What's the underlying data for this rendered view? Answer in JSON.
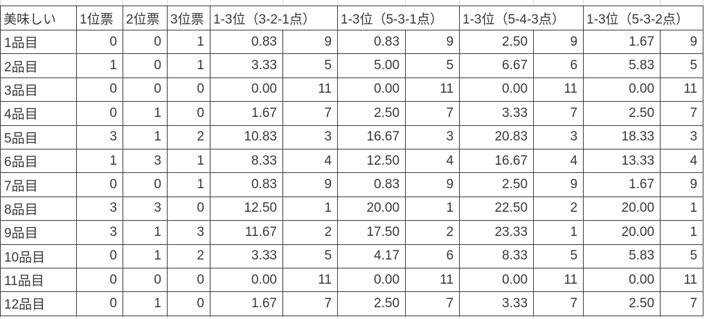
{
  "colors": {
    "highlight_gray": "#A6A6A6",
    "highlight_orange": "#FFC000",
    "highlight_blue": "#5B9BD5",
    "highlight_green": "#A9D18E"
  },
  "table": {
    "headers": [
      {
        "label": "美味しい",
        "span": 1
      },
      {
        "label": "1位票",
        "span": 1
      },
      {
        "label": "2位票",
        "span": 1
      },
      {
        "label": "3位票",
        "span": 1
      },
      {
        "label": "1-3位（3-2-1点）",
        "span": 2
      },
      {
        "label": "1-3位（5-3-1点）",
        "span": 2
      },
      {
        "label": "1-3位（5-4-3点）",
        "span": 2
      },
      {
        "label": "1-3位（5-3-2点）",
        "span": 2
      }
    ],
    "rows": [
      {
        "item": "1品目",
        "cells": [
          {
            "v": "0",
            "fill": "gray"
          },
          {
            "v": "0",
            "fill": "gray"
          },
          {
            "v": "1",
            "fill": ""
          },
          {
            "v": "0.83",
            "fill": ""
          },
          {
            "v": "9",
            "fill": ""
          },
          {
            "v": "0.83",
            "fill": ""
          },
          {
            "v": "9",
            "fill": ""
          },
          {
            "v": "2.50",
            "fill": ""
          },
          {
            "v": "9",
            "fill": ""
          },
          {
            "v": "1.67",
            "fill": ""
          },
          {
            "v": "9",
            "fill": ""
          }
        ]
      },
      {
        "item": "2品目",
        "cells": [
          {
            "v": "1",
            "fill": ""
          },
          {
            "v": "0",
            "fill": "gray"
          },
          {
            "v": "1",
            "fill": ""
          },
          {
            "v": "3.33",
            "fill": ""
          },
          {
            "v": "5",
            "fill": ""
          },
          {
            "v": "5.00",
            "fill": ""
          },
          {
            "v": "5",
            "fill": ""
          },
          {
            "v": "6.67",
            "fill": ""
          },
          {
            "v": "6",
            "fill": ""
          },
          {
            "v": "5.83",
            "fill": ""
          },
          {
            "v": "5",
            "fill": ""
          }
        ]
      },
      {
        "item": "3品目",
        "cells": [
          {
            "v": "0",
            "fill": "gray"
          },
          {
            "v": "0",
            "fill": "gray"
          },
          {
            "v": "0",
            "fill": "gray"
          },
          {
            "v": "0.00",
            "fill": "gray"
          },
          {
            "v": "11",
            "fill": "gray"
          },
          {
            "v": "0.00",
            "fill": "gray"
          },
          {
            "v": "11",
            "fill": "gray"
          },
          {
            "v": "0.00",
            "fill": "gray"
          },
          {
            "v": "11",
            "fill": "gray"
          },
          {
            "v": "0.00",
            "fill": "gray"
          },
          {
            "v": "11",
            "fill": "gray"
          }
        ]
      },
      {
        "item": "4品目",
        "cells": [
          {
            "v": "0",
            "fill": "gray"
          },
          {
            "v": "1",
            "fill": ""
          },
          {
            "v": "0",
            "fill": "gray"
          },
          {
            "v": "1.67",
            "fill": ""
          },
          {
            "v": "7",
            "fill": ""
          },
          {
            "v": "2.50",
            "fill": ""
          },
          {
            "v": "7",
            "fill": ""
          },
          {
            "v": "3.33",
            "fill": ""
          },
          {
            "v": "7",
            "fill": ""
          },
          {
            "v": "2.50",
            "fill": ""
          },
          {
            "v": "7",
            "fill": ""
          }
        ]
      },
      {
        "item": "5品目",
        "cells": [
          {
            "v": "3",
            "fill": "orange"
          },
          {
            "v": "1",
            "fill": ""
          },
          {
            "v": "2",
            "fill": "blue"
          },
          {
            "v": "10.83",
            "fill": "green"
          },
          {
            "v": "3",
            "fill": "green"
          },
          {
            "v": "16.67",
            "fill": "green"
          },
          {
            "v": "3",
            "fill": "green"
          },
          {
            "v": "20.83",
            "fill": "green"
          },
          {
            "v": "3",
            "fill": "green"
          },
          {
            "v": "18.33",
            "fill": "green"
          },
          {
            "v": "3",
            "fill": "green"
          }
        ]
      },
      {
        "item": "6品目",
        "cells": [
          {
            "v": "1",
            "fill": ""
          },
          {
            "v": "3",
            "fill": "orange"
          },
          {
            "v": "1",
            "fill": ""
          },
          {
            "v": "8.33",
            "fill": ""
          },
          {
            "v": "4",
            "fill": ""
          },
          {
            "v": "12.50",
            "fill": ""
          },
          {
            "v": "4",
            "fill": ""
          },
          {
            "v": "16.67",
            "fill": ""
          },
          {
            "v": "4",
            "fill": ""
          },
          {
            "v": "13.33",
            "fill": ""
          },
          {
            "v": "4",
            "fill": ""
          }
        ]
      },
      {
        "item": "7品目",
        "cells": [
          {
            "v": "0",
            "fill": "gray"
          },
          {
            "v": "0",
            "fill": "gray"
          },
          {
            "v": "1",
            "fill": ""
          },
          {
            "v": "0.83",
            "fill": ""
          },
          {
            "v": "9",
            "fill": ""
          },
          {
            "v": "0.83",
            "fill": ""
          },
          {
            "v": "9",
            "fill": ""
          },
          {
            "v": "2.50",
            "fill": ""
          },
          {
            "v": "9",
            "fill": ""
          },
          {
            "v": "1.67",
            "fill": ""
          },
          {
            "v": "9",
            "fill": ""
          }
        ]
      },
      {
        "item": "8品目",
        "cells": [
          {
            "v": "3",
            "fill": "orange"
          },
          {
            "v": "3",
            "fill": "orange"
          },
          {
            "v": "0",
            "fill": "gray"
          },
          {
            "v": "12.50",
            "fill": "orange"
          },
          {
            "v": "1",
            "fill": "orange"
          },
          {
            "v": "20.00",
            "fill": "orange"
          },
          {
            "v": "1",
            "fill": "orange"
          },
          {
            "v": "22.50",
            "fill": "blue"
          },
          {
            "v": "2",
            "fill": "blue"
          },
          {
            "v": "20.00",
            "fill": "orange"
          },
          {
            "v": "1",
            "fill": "orange"
          }
        ]
      },
      {
        "item": "9品目",
        "cells": [
          {
            "v": "3",
            "fill": "orange"
          },
          {
            "v": "1",
            "fill": ""
          },
          {
            "v": "3",
            "fill": "orange"
          },
          {
            "v": "11.67",
            "fill": "blue"
          },
          {
            "v": "2",
            "fill": "blue"
          },
          {
            "v": "17.50",
            "fill": "blue"
          },
          {
            "v": "2",
            "fill": "blue"
          },
          {
            "v": "23.33",
            "fill": "orange"
          },
          {
            "v": "1",
            "fill": "orange"
          },
          {
            "v": "20.00",
            "fill": "orange"
          },
          {
            "v": "1",
            "fill": "orange"
          }
        ]
      },
      {
        "item": "10品目",
        "cells": [
          {
            "v": "0",
            "fill": "gray"
          },
          {
            "v": "1",
            "fill": ""
          },
          {
            "v": "2",
            "fill": "blue"
          },
          {
            "v": "3.33",
            "fill": ""
          },
          {
            "v": "5",
            "fill": ""
          },
          {
            "v": "4.17",
            "fill": ""
          },
          {
            "v": "6",
            "fill": ""
          },
          {
            "v": "8.33",
            "fill": ""
          },
          {
            "v": "5",
            "fill": ""
          },
          {
            "v": "5.83",
            "fill": ""
          },
          {
            "v": "5",
            "fill": ""
          }
        ]
      },
      {
        "item": "11品目",
        "cells": [
          {
            "v": "0",
            "fill": "gray"
          },
          {
            "v": "0",
            "fill": "gray"
          },
          {
            "v": "0",
            "fill": "gray"
          },
          {
            "v": "0.00",
            "fill": "gray"
          },
          {
            "v": "11",
            "fill": "gray"
          },
          {
            "v": "0.00",
            "fill": "gray"
          },
          {
            "v": "11",
            "fill": "gray"
          },
          {
            "v": "0.00",
            "fill": "gray"
          },
          {
            "v": "11",
            "fill": "gray"
          },
          {
            "v": "0.00",
            "fill": "gray"
          },
          {
            "v": "11",
            "fill": "gray"
          }
        ]
      },
      {
        "item": "12品目",
        "cells": [
          {
            "v": "0",
            "fill": "gray"
          },
          {
            "v": "1",
            "fill": ""
          },
          {
            "v": "0",
            "fill": "gray"
          },
          {
            "v": "1.67",
            "fill": ""
          },
          {
            "v": "7",
            "fill": ""
          },
          {
            "v": "2.50",
            "fill": ""
          },
          {
            "v": "7",
            "fill": ""
          },
          {
            "v": "3.33",
            "fill": ""
          },
          {
            "v": "7",
            "fill": ""
          },
          {
            "v": "2.50",
            "fill": ""
          },
          {
            "v": "7",
            "fill": ""
          }
        ]
      }
    ]
  }
}
